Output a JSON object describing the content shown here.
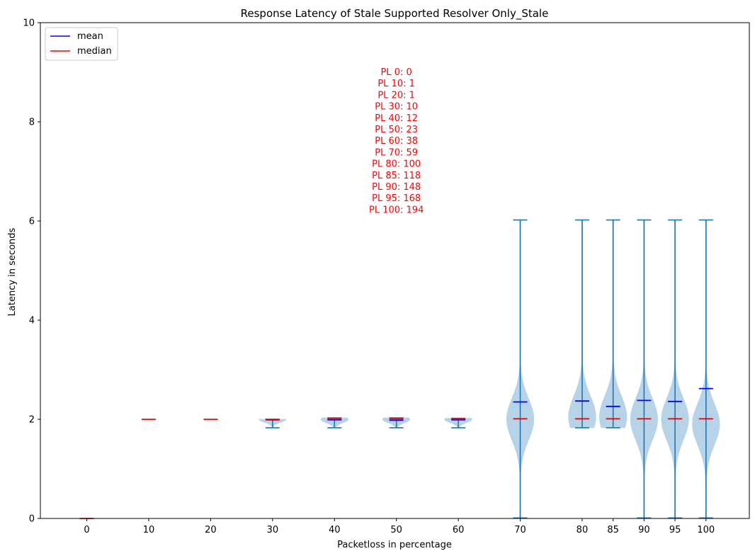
{
  "chart_data": {
    "type": "violin",
    "title": "Response Latency of Stale Supported Resolver Only_Stale",
    "xlabel": "Packetloss in percentage",
    "ylabel": "Latency in seconds",
    "ylim": [
      0,
      10
    ],
    "yticks": [
      0,
      2,
      4,
      6,
      8,
      10
    ],
    "grid": false,
    "legend": {
      "placement": "top-left",
      "entries": [
        {
          "label": "mean",
          "color": "#0000ff"
        },
        {
          "label": "median",
          "color": "#ff0000"
        }
      ]
    },
    "colors": {
      "violin_fill": "#b7d3e8",
      "violin_line": "#1f77b4",
      "mean": "#0000ff",
      "median": "#ff0000",
      "annotation": "#ff0000"
    },
    "annotation": [
      "PL 0: 0",
      "PL 10: 1",
      "PL 20: 1",
      "PL 30: 10",
      "PL 40: 12",
      "PL 50: 23",
      "PL 60: 38",
      "PL 70: 59",
      "PL 80: 100",
      "PL 85: 118",
      "PL 90: 148",
      "PL 95: 168",
      "PL 100: 194"
    ],
    "x_range": [
      -7.5,
      107
    ],
    "violins": [
      {
        "x": 0,
        "label": "0",
        "min": 0.0,
        "max": 0.0,
        "mean": 0.0,
        "median": 0.0,
        "peak": 2.0,
        "halfwidth": 0.0
      },
      {
        "x": 10,
        "label": "10",
        "min": 2.0,
        "max": 2.0,
        "mean": 2.0,
        "median": 2.0,
        "peak": 2.0,
        "halfwidth": 0.0
      },
      {
        "x": 20,
        "label": "20",
        "min": 2.0,
        "max": 2.0,
        "mean": 2.0,
        "median": 2.0,
        "peak": 2.0,
        "halfwidth": 0.0
      },
      {
        "x": 30,
        "label": "30",
        "min": 1.83,
        "max": 2.0,
        "mean": 1.99,
        "median": 2.0,
        "peak": 2.0,
        "halfwidth": 2.2
      },
      {
        "x": 40,
        "label": "40",
        "min": 1.83,
        "max": 2.03,
        "mean": 1.99,
        "median": 2.01,
        "peak": 2.0,
        "halfwidth": 2.2
      },
      {
        "x": 50,
        "label": "50",
        "min": 1.83,
        "max": 2.03,
        "mean": 1.98,
        "median": 2.01,
        "peak": 2.0,
        "halfwidth": 2.2
      },
      {
        "x": 60,
        "label": "60",
        "min": 1.83,
        "max": 2.02,
        "mean": 1.99,
        "median": 2.01,
        "peak": 2.0,
        "halfwidth": 2.2
      },
      {
        "x": 70,
        "label": "70",
        "min": 0.01,
        "max": 6.02,
        "mean": 2.35,
        "median": 2.01,
        "peak": 2.0,
        "halfwidth": 2.2
      },
      {
        "x": 80,
        "label": "80",
        "min": 1.83,
        "max": 6.02,
        "mean": 2.37,
        "median": 2.01,
        "peak": 2.05,
        "halfwidth": 2.2
      },
      {
        "x": 85,
        "label": "85",
        "min": 1.83,
        "max": 6.02,
        "mean": 2.26,
        "median": 2.01,
        "peak": 2.05,
        "halfwidth": 2.2
      },
      {
        "x": 90,
        "label": "90",
        "min": 0.01,
        "max": 6.02,
        "mean": 2.38,
        "median": 2.01,
        "peak": 2.0,
        "halfwidth": 2.2
      },
      {
        "x": 95,
        "label": "95",
        "min": 0.01,
        "max": 6.02,
        "mean": 2.36,
        "median": 2.01,
        "peak": 2.0,
        "halfwidth": 2.2
      },
      {
        "x": 100,
        "label": "100",
        "min": 0.01,
        "max": 6.02,
        "mean": 2.62,
        "median": 2.01,
        "peak": 1.9,
        "halfwidth": 2.2
      }
    ]
  }
}
